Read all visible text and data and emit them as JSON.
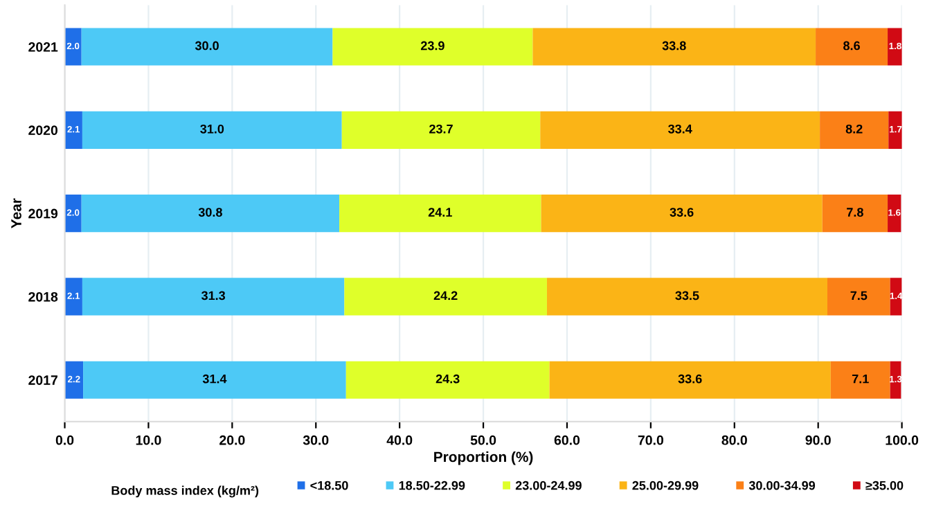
{
  "chart_data": {
    "type": "bar",
    "orientation": "horizontal",
    "stacked": true,
    "categories": [
      "2021",
      "2020",
      "2019",
      "2018",
      "2017"
    ],
    "xlabel": "Proportion (%)",
    "ylabel": "Year",
    "legend_title": "Body mass index (kg/m²)",
    "legend": "bottom",
    "grid": "x",
    "xlim": [
      0,
      100
    ],
    "xticks": [
      {
        "value": 0,
        "label": "0.0"
      },
      {
        "value": 10,
        "label": "10.0"
      },
      {
        "value": 20,
        "label": "20.0"
      },
      {
        "value": 30,
        "label": "30.0"
      },
      {
        "value": 40,
        "label": "40.0"
      },
      {
        "value": 50,
        "label": "50.0"
      },
      {
        "value": 60,
        "label": "60.0"
      },
      {
        "value": 70,
        "label": "70.0"
      },
      {
        "value": 80,
        "label": "80.0"
      },
      {
        "value": 90,
        "label": "90.0"
      },
      {
        "value": 100,
        "label": "100.0"
      }
    ],
    "series": [
      {
        "name": "<18.50",
        "color": "#1f6fe8",
        "values": [
          2.0,
          2.1,
          2.0,
          2.1,
          2.2
        ],
        "value_labels": [
          "2.0",
          "2.1",
          "2.0",
          "2.1",
          "2.2"
        ]
      },
      {
        "name": "18.50-22.99",
        "color": "#4dc9f6",
        "values": [
          30.0,
          31.0,
          30.8,
          31.3,
          31.4
        ],
        "value_labels": [
          "30.0",
          "31.0",
          "30.8",
          "31.3",
          "31.4"
        ]
      },
      {
        "name": "23.00-24.99",
        "color": "#dfff2a",
        "values": [
          23.9,
          23.7,
          24.1,
          24.2,
          24.3
        ],
        "value_labels": [
          "23.9",
          "23.7",
          "24.1",
          "24.2",
          "24.3"
        ]
      },
      {
        "name": "25.00-29.99",
        "color": "#fbb416",
        "values": [
          33.8,
          33.4,
          33.6,
          33.5,
          33.6
        ],
        "value_labels": [
          "33.8",
          "33.4",
          "33.6",
          "33.5",
          "33.6"
        ]
      },
      {
        "name": "30.00-34.99",
        "color": "#fb8017",
        "values": [
          8.6,
          8.2,
          7.8,
          7.5,
          7.1
        ],
        "value_labels": [
          "8.6",
          "8.2",
          "7.8",
          "7.5",
          "7.1"
        ]
      },
      {
        "name": "≥35.00",
        "color": "#d10a14",
        "values": [
          1.8,
          1.7,
          1.6,
          1.4,
          1.3
        ],
        "value_labels": [
          "1.8",
          "1.7",
          "1.6",
          "1.4",
          "1.3"
        ]
      }
    ]
  }
}
